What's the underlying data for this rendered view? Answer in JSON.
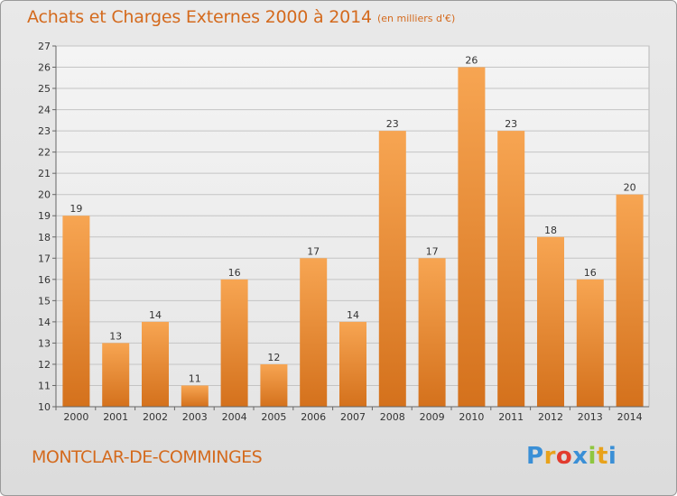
{
  "title": "Achats et Charges Externes 2000 à 2014",
  "subtitle": "(en milliers d'€)",
  "commune": "MONTCLAR-DE-COMMINGES",
  "logo": {
    "letters": [
      "P",
      "r",
      "o",
      "x",
      "i",
      "t",
      "i"
    ],
    "colors": [
      "#3a8fd6",
      "#e8a21b",
      "#e23b2e",
      "#3a8fd6",
      "#8ec63f",
      "#e8a21b",
      "#3a8fd6"
    ]
  },
  "chart_data": {
    "type": "bar",
    "categories": [
      "2000",
      "2001",
      "2002",
      "2003",
      "2004",
      "2005",
      "2006",
      "2007",
      "2008",
      "2009",
      "2010",
      "2011",
      "2012",
      "2013",
      "2014"
    ],
    "values": [
      19,
      13,
      14,
      11,
      16,
      12,
      17,
      14,
      23,
      17,
      26,
      23,
      18,
      16,
      20
    ],
    "title": "Achats et Charges Externes 2000 à 2014",
    "subtitle": "(en milliers d'€)",
    "ylim": [
      10,
      27
    ],
    "yticks": [
      10,
      11,
      12,
      13,
      14,
      15,
      16,
      17,
      18,
      19,
      20,
      21,
      22,
      23,
      24,
      25,
      26,
      27
    ],
    "grid": true,
    "bar_color": "#f2913a"
  }
}
